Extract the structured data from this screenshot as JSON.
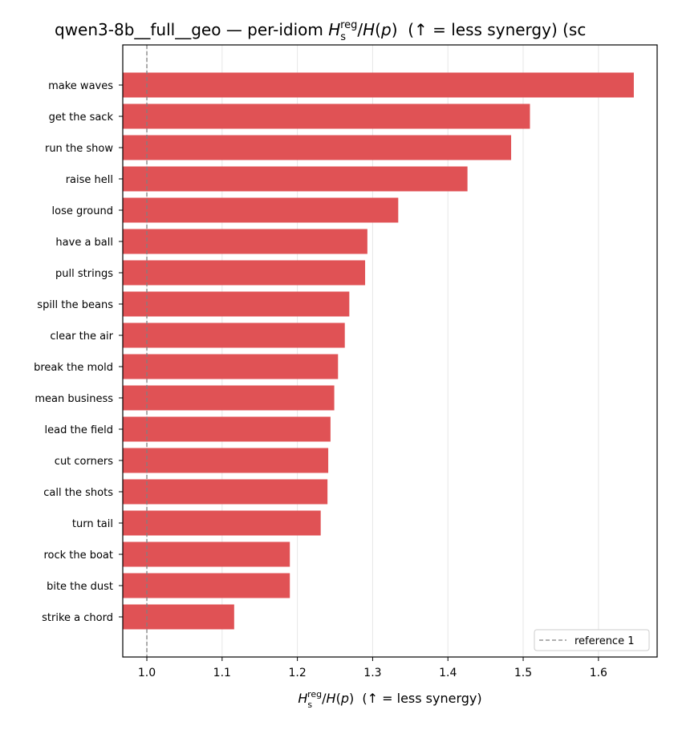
{
  "chart_data": {
    "type": "bar",
    "orientation": "horizontal",
    "title": "qwen3-8b__full__geo — per-idiom H_s^reg/H(p)  (↑ = less synergy) (sc",
    "title_parts": {
      "prefix": "qwen3-8b__full__geo — per-idiom ",
      "H": "H",
      "sub": "s",
      "sup": "reg",
      "middle": "/",
      "H2": "H",
      "paren_open": "(",
      "p": "p",
      "paren_close": ")",
      "suffix": "  (↑ = less synergy) (sc"
    },
    "xlabel": "H_s^reg/H(p)  (↑ = less synergy)",
    "xlabel_parts": {
      "H": "H",
      "sub": "s",
      "sup": "reg",
      "middle": "/",
      "H2": "H",
      "paren_open": "(",
      "p": "p",
      "paren_close": ")",
      "suffix": "  (↑ = less synergy)"
    },
    "ylabel": "",
    "xlim": [
      0.968,
      1.678
    ],
    "xticks": [
      1.0,
      1.1,
      1.2,
      1.3,
      1.4,
      1.5,
      1.6
    ],
    "xtick_labels": [
      "1.0",
      "1.1",
      "1.2",
      "1.3",
      "1.4",
      "1.5",
      "1.6"
    ],
    "grid": "vertical",
    "bar_color": "#e05255",
    "reference_line": {
      "x": 1.0,
      "label": "reference 1",
      "color": "#808080",
      "style": "dashed"
    },
    "legend": {
      "placement": "bottom-right",
      "entries": [
        "reference 1"
      ]
    },
    "categories": [
      "make waves",
      "get the sack",
      "run the show",
      "raise hell",
      "lose ground",
      "have a ball",
      "pull strings",
      "spill the beans",
      "clear the air",
      "break the mold",
      "mean business",
      "lead the field",
      "cut corners",
      "call the shots",
      "turn tail",
      "rock the boat",
      "bite the dust",
      "strike a chord"
    ],
    "values": [
      1.647,
      1.509,
      1.484,
      1.426,
      1.334,
      1.293,
      1.29,
      1.269,
      1.263,
      1.254,
      1.249,
      1.244,
      1.241,
      1.24,
      1.231,
      1.19,
      1.19,
      1.116
    ]
  }
}
